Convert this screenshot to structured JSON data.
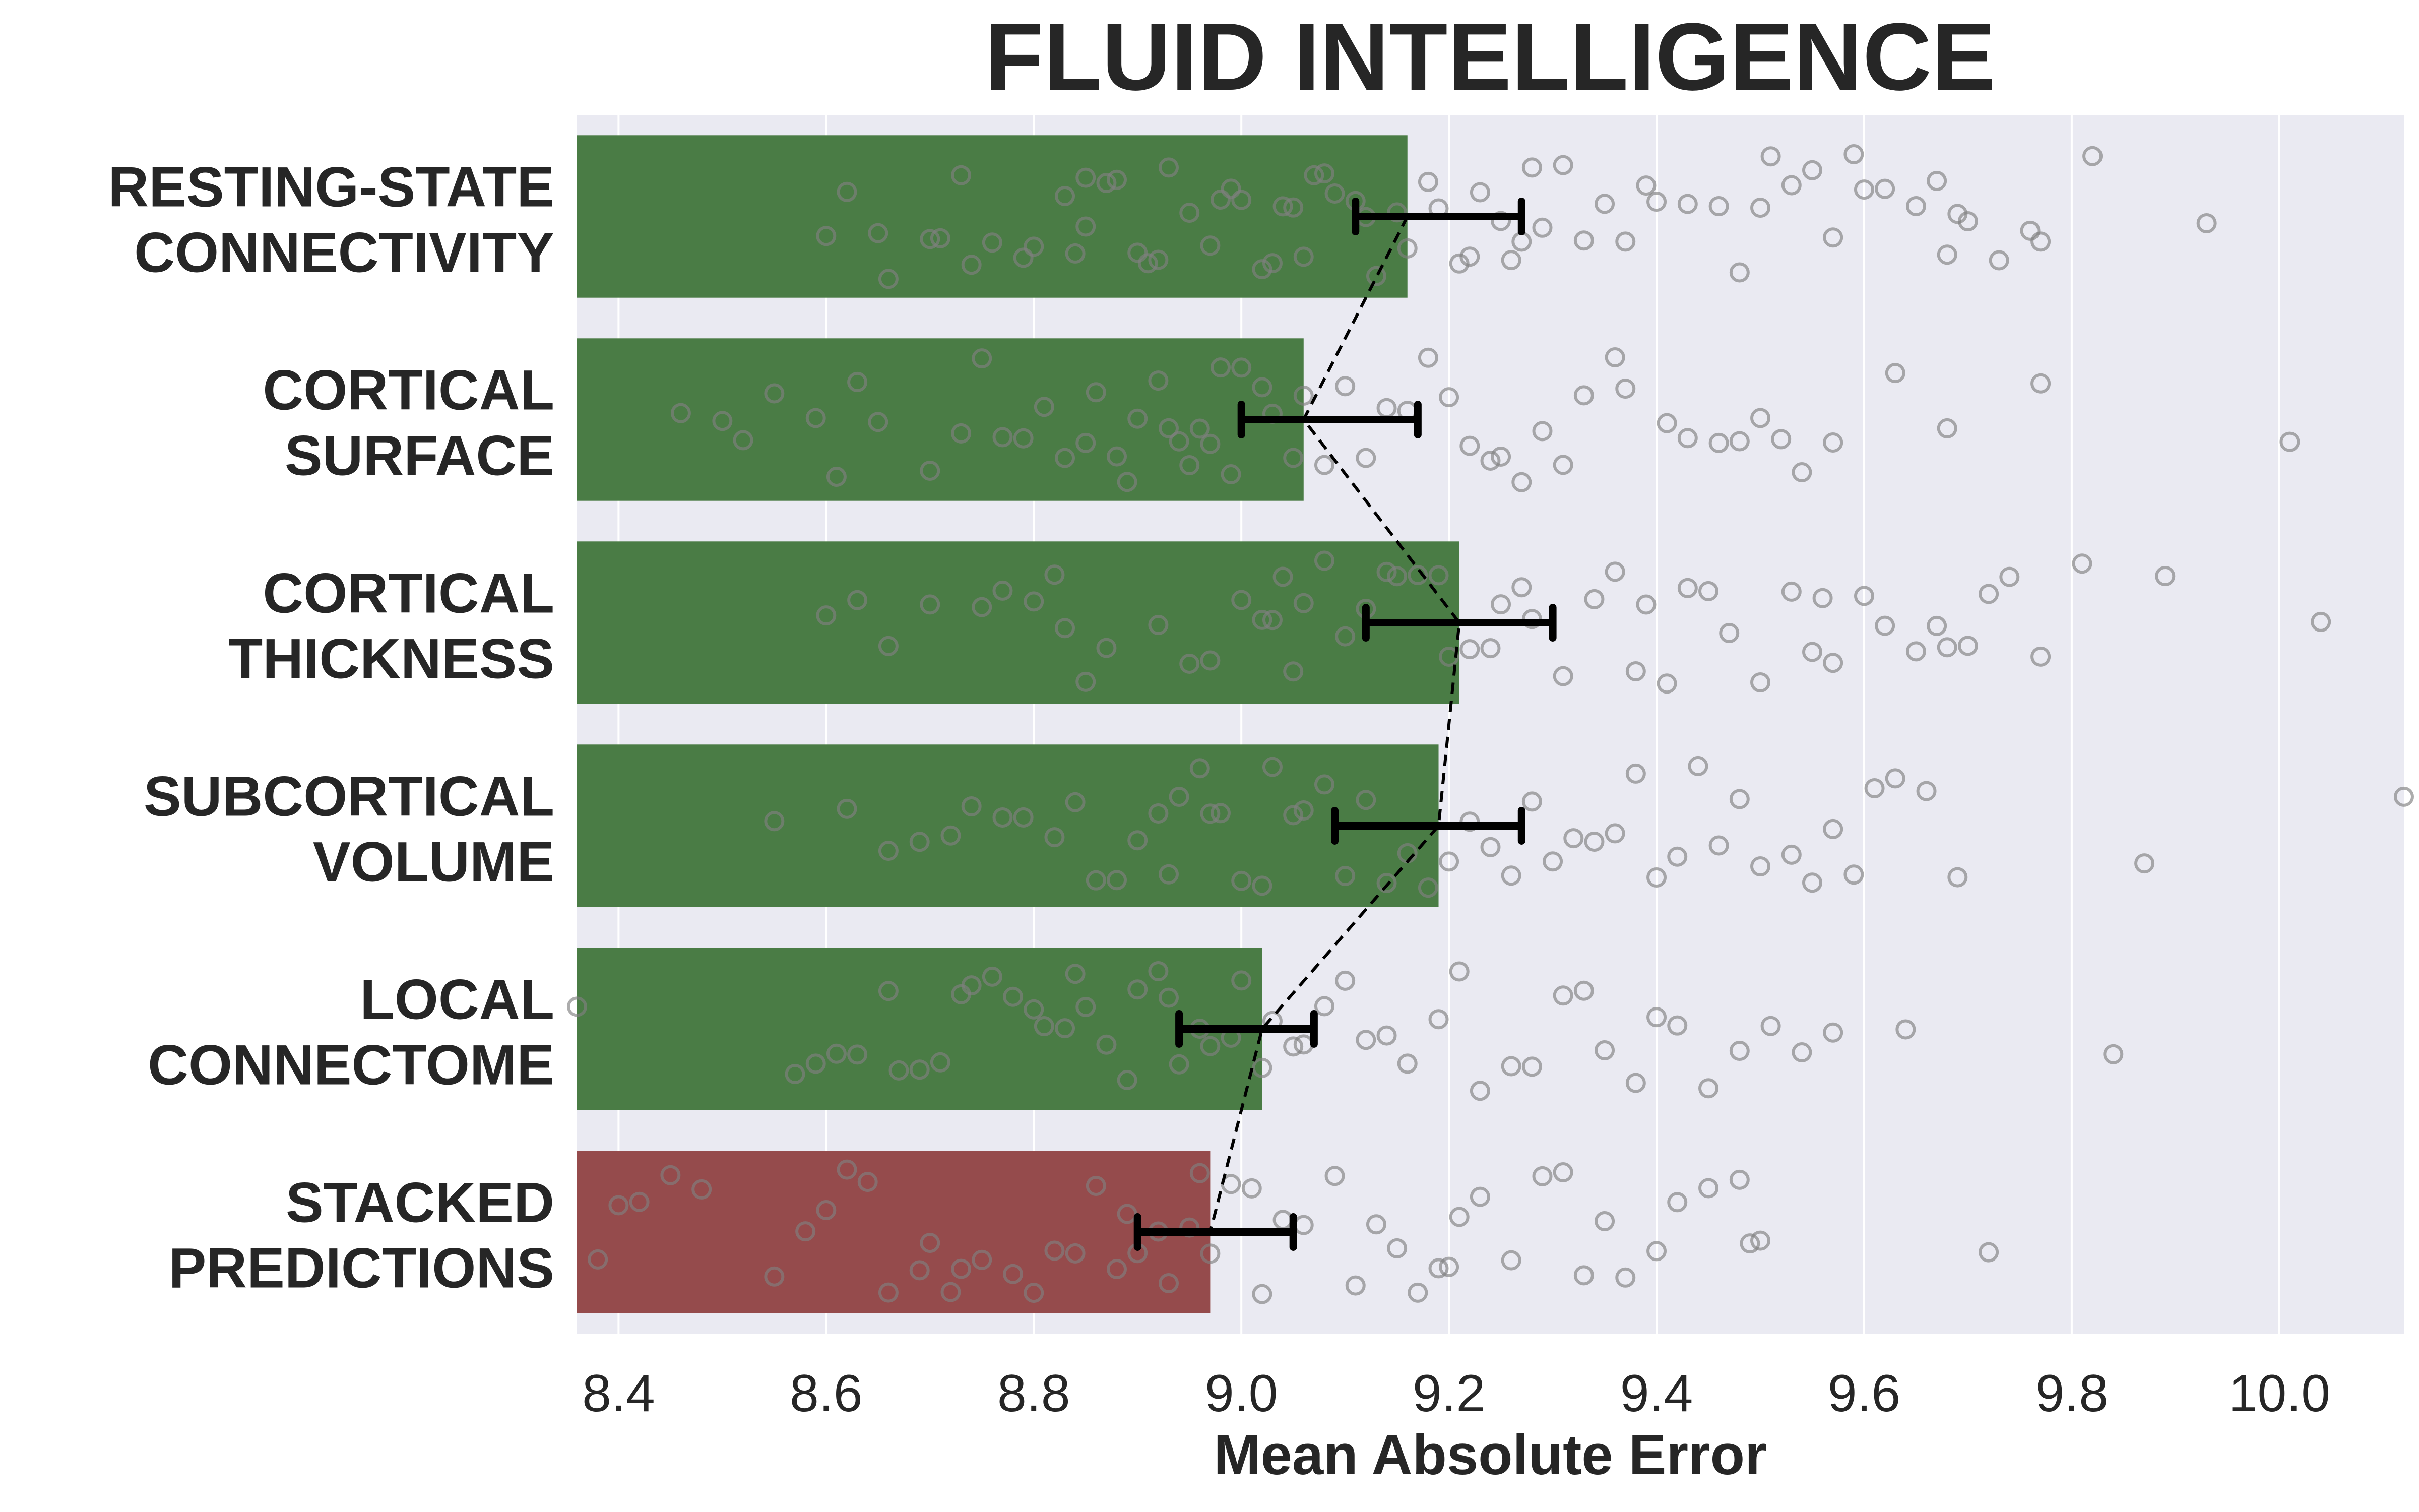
{
  "chart_data": {
    "type": "bar",
    "orientation": "horizontal",
    "title": "FLUID INTELLIGENCE",
    "xlabel": "Mean Absolute Error",
    "ylabel": "",
    "xlim": [
      8.36,
      10.12
    ],
    "xticks": [
      "8.4",
      "8.6",
      "8.8",
      "9.0",
      "9.2",
      "9.4",
      "9.6",
      "9.8",
      "10.0"
    ],
    "grid": true,
    "categories": [
      [
        "RESTING-STATE",
        "CONNECTIVITY"
      ],
      [
        "CORTICAL",
        "SURFACE"
      ],
      [
        "CORTICAL",
        "THICKNESS"
      ],
      [
        "SUBCORTICAL",
        "VOLUME"
      ],
      [
        "LOCAL",
        "CONNECTOME"
      ],
      [
        "STACKED",
        "PREDICTIONS"
      ]
    ],
    "values": [
      9.16,
      9.06,
      9.21,
      9.19,
      9.02,
      8.97
    ],
    "error_low": [
      9.11,
      9.0,
      9.12,
      9.09,
      8.94,
      8.9
    ],
    "error_high": [
      9.27,
      9.17,
      9.3,
      9.27,
      9.07,
      9.05
    ],
    "bar_colors": [
      "#4a7c45",
      "#4a7c45",
      "#4a7c45",
      "#4a7c45",
      "#4a7c45",
      "#954b4c"
    ],
    "background_color": "#eaeaf2",
    "connect_means": true,
    "points": [
      [
        8.6,
        8.62,
        8.65,
        8.66,
        8.7,
        8.71,
        8.73,
        8.74,
        8.76,
        8.79,
        8.8,
        8.83,
        8.84,
        8.85,
        8.85,
        8.87,
        8.88,
        8.9,
        8.91,
        8.92,
        8.93,
        8.95,
        8.97,
        8.98,
        8.99,
        9.0,
        9.02,
        9.03,
        9.04,
        9.05,
        9.06,
        9.07,
        9.08,
        9.09,
        9.11,
        9.12,
        9.13,
        9.15,
        9.16,
        9.18,
        9.19,
        9.21,
        9.22,
        9.23,
        9.25,
        9.26,
        9.27,
        9.28,
        9.29,
        9.31,
        9.33,
        9.35,
        9.37,
        9.39,
        9.4,
        9.43,
        9.46,
        9.48,
        9.5,
        9.51,
        9.53,
        9.55,
        9.57,
        9.59,
        9.6,
        9.62,
        9.65,
        9.67,
        9.68,
        9.69,
        9.7,
        9.73,
        9.76,
        9.77,
        9.82,
        9.93
      ],
      [
        8.46,
        8.5,
        8.52,
        8.55,
        8.59,
        8.61,
        8.63,
        8.65,
        8.7,
        8.73,
        8.75,
        8.77,
        8.79,
        8.81,
        8.83,
        8.85,
        8.86,
        8.88,
        8.89,
        8.9,
        8.92,
        8.93,
        8.94,
        8.95,
        8.96,
        8.97,
        8.98,
        8.99,
        9.0,
        9.02,
        9.03,
        9.05,
        9.06,
        9.08,
        9.1,
        9.12,
        9.14,
        9.16,
        9.18,
        9.2,
        9.22,
        9.24,
        9.25,
        9.27,
        9.29,
        9.31,
        9.33,
        9.36,
        9.37,
        9.41,
        9.43,
        9.46,
        9.48,
        9.5,
        9.52,
        9.54,
        9.57,
        9.63,
        9.68,
        9.77,
        10.01
      ],
      [
        8.6,
        8.63,
        8.66,
        8.7,
        8.75,
        8.77,
        8.8,
        8.82,
        8.83,
        8.85,
        8.87,
        8.92,
        8.95,
        8.97,
        9.0,
        9.02,
        9.03,
        9.04,
        9.05,
        9.06,
        9.08,
        9.1,
        9.12,
        9.14,
        9.15,
        9.17,
        9.19,
        9.2,
        9.22,
        9.24,
        9.25,
        9.27,
        9.28,
        9.31,
        9.34,
        9.36,
        9.38,
        9.39,
        9.41,
        9.43,
        9.45,
        9.47,
        9.5,
        9.53,
        9.55,
        9.56,
        9.57,
        9.6,
        9.62,
        9.65,
        9.67,
        9.68,
        9.7,
        9.72,
        9.74,
        9.77,
        9.81,
        9.89,
        10.04
      ],
      [
        8.55,
        8.62,
        8.66,
        8.69,
        8.72,
        8.74,
        8.77,
        8.79,
        8.82,
        8.84,
        8.86,
        8.88,
        8.9,
        8.92,
        8.93,
        8.94,
        8.96,
        8.97,
        8.98,
        9.0,
        9.02,
        9.03,
        9.05,
        9.06,
        9.08,
        9.1,
        9.12,
        9.14,
        9.16,
        9.18,
        9.2,
        9.22,
        9.24,
        9.26,
        9.28,
        9.3,
        9.32,
        9.34,
        9.36,
        9.38,
        9.4,
        9.42,
        9.44,
        9.46,
        9.48,
        9.5,
        9.53,
        9.55,
        9.57,
        9.59,
        9.61,
        9.63,
        9.66,
        9.69,
        9.87,
        10.12
      ],
      [
        8.36,
        8.57,
        8.59,
        8.61,
        8.63,
        8.66,
        8.67,
        8.69,
        8.71,
        8.73,
        8.74,
        8.76,
        8.78,
        8.8,
        8.81,
        8.83,
        8.84,
        8.85,
        8.87,
        8.89,
        8.9,
        8.92,
        8.93,
        8.94,
        8.96,
        8.97,
        8.99,
        9.0,
        9.02,
        9.03,
        9.05,
        9.06,
        9.08,
        9.1,
        9.12,
        9.14,
        9.16,
        9.19,
        9.21,
        9.23,
        9.26,
        9.28,
        9.31,
        9.33,
        9.35,
        9.38,
        9.4,
        9.42,
        9.45,
        9.48,
        9.51,
        9.54,
        9.57,
        9.64,
        9.84
      ],
      [
        8.38,
        8.4,
        8.42,
        8.45,
        8.48,
        8.55,
        8.58,
        8.6,
        8.62,
        8.64,
        8.66,
        8.69,
        8.7,
        8.72,
        8.73,
        8.75,
        8.78,
        8.8,
        8.82,
        8.84,
        8.86,
        8.88,
        8.89,
        8.9,
        8.92,
        8.93,
        8.95,
        8.96,
        8.97,
        8.99,
        9.01,
        9.02,
        9.04,
        9.06,
        9.09,
        9.11,
        9.13,
        9.15,
        9.17,
        9.19,
        9.2,
        9.21,
        9.23,
        9.26,
        9.29,
        9.31,
        9.33,
        9.35,
        9.37,
        9.4,
        9.42,
        9.45,
        9.48,
        9.49,
        9.5,
        9.72
      ]
    ]
  }
}
